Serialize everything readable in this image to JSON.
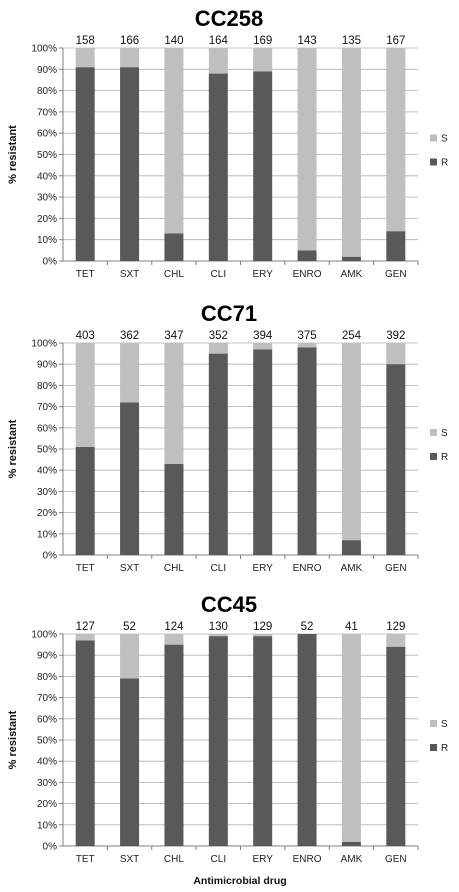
{
  "colors": {
    "R": "#595959",
    "S": "#bfbfbf",
    "axis": "#7f7f7f",
    "grid": "#b0b0b0"
  },
  "figure": {
    "xlabel": "Antimicrobial drug"
  },
  "chart_data": [
    {
      "type": "bar",
      "stacked": true,
      "title": "CC258",
      "ylabel": "% resistant",
      "xlabel": "",
      "ylim": [
        0,
        100
      ],
      "yticks": [
        "0%",
        "10%",
        "20%",
        "30%",
        "40%",
        "50%",
        "60%",
        "70%",
        "80%",
        "90%",
        "100%"
      ],
      "categories": [
        "TET",
        "SXT",
        "CHL",
        "CLI",
        "ERY",
        "ENRO",
        "AMK",
        "GEN"
      ],
      "n_labels": [
        "158",
        "166",
        "140",
        "164",
        "169",
        "143",
        "135",
        "167"
      ],
      "legend_position": "right",
      "series": [
        {
          "name": "S",
          "values": [
            9,
            9,
            87,
            12,
            11,
            95,
            98,
            86
          ]
        },
        {
          "name": "R",
          "values": [
            91,
            91,
            13,
            88,
            89,
            5,
            2,
            14
          ]
        }
      ]
    },
    {
      "type": "bar",
      "stacked": true,
      "title": "CC71",
      "ylabel": "% resistant",
      "xlabel": "",
      "ylim": [
        0,
        100
      ],
      "yticks": [
        "0%",
        "10%",
        "20%",
        "30%",
        "40%",
        "50%",
        "60%",
        "70%",
        "80%",
        "90%",
        "100%"
      ],
      "categories": [
        "TET",
        "SXT",
        "CHL",
        "CLI",
        "ERY",
        "ENRO",
        "AMK",
        "GEN"
      ],
      "n_labels": [
        "403",
        "362",
        "347",
        "352",
        "394",
        "375",
        "254",
        "392"
      ],
      "legend_position": "right",
      "series": [
        {
          "name": "S",
          "values": [
            49,
            28,
            57,
            5,
            3,
            2,
            93,
            10
          ]
        },
        {
          "name": "R",
          "values": [
            51,
            72,
            43,
            95,
            97,
            98,
            7,
            90
          ]
        }
      ]
    },
    {
      "type": "bar",
      "stacked": true,
      "title": "CC45",
      "ylabel": "% resistant",
      "xlabel": "Antimicrobial drug",
      "ylim": [
        0,
        100
      ],
      "yticks": [
        "0%",
        "10%",
        "20%",
        "30%",
        "40%",
        "50%",
        "60%",
        "70%",
        "80%",
        "90%",
        "100%"
      ],
      "categories": [
        "TET",
        "SXT",
        "CHL",
        "CLI",
        "ERY",
        "ENRO",
        "AMK",
        "GEN"
      ],
      "n_labels": [
        "127",
        "52",
        "124",
        "130",
        "129",
        "52",
        "41",
        "129"
      ],
      "legend_position": "right",
      "series": [
        {
          "name": "S",
          "values": [
            3,
            21,
            5,
            1,
            1,
            0,
            98,
            6
          ]
        },
        {
          "name": "R",
          "values": [
            97,
            79,
            95,
            99,
            99,
            100,
            2,
            94
          ]
        }
      ]
    }
  ]
}
